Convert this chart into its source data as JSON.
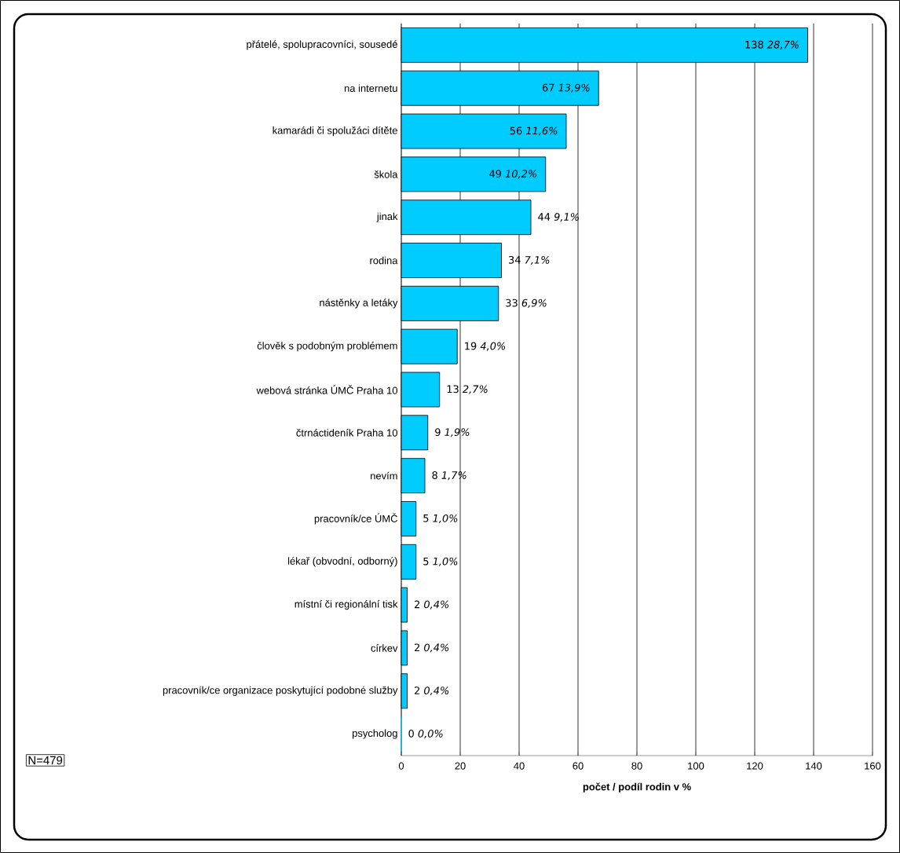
{
  "chart_data": {
    "type": "bar",
    "orientation": "horizontal",
    "categories": [
      "přátelé, spolupracovníci, sousedé",
      "na internetu",
      "kamarádi či spolužáci dítěte",
      "škola",
      "jinak",
      "rodina",
      "nástěnky a letáky",
      "člověk s podobným problémem",
      "webová stránka ÚMČ Praha 10",
      "čtrnáctideník Praha 10",
      "nevím",
      "pracovník/ce ÚMČ",
      "lékař (obvodní, odborný)",
      "místní či regionální tisk",
      "církev",
      "pracovník/ce organizace poskytující podobné služby",
      "psycholog"
    ],
    "values": [
      138,
      67,
      56,
      49,
      44,
      34,
      33,
      19,
      13,
      9,
      8,
      5,
      5,
      2,
      2,
      2,
      0
    ],
    "value_labels": [
      "138 *28,7%*",
      "67 *13,9%*",
      "56 *11,6%*",
      "49 *10,2%*",
      "44 *9,1%*",
      "34 *7,1%*",
      "33 *6,9%*",
      "19 *4,0%*",
      "13 *2,7%*",
      "9 *1,9%*",
      "8 *1,7%*",
      "5 *1,0%*",
      "5 *1,0%*",
      "2 *0,4%*",
      "2 *0,4%*",
      "2 *0,4%*",
      "0 *0,0%*"
    ],
    "color": "#00ccff",
    "xlim": [
      0,
      160
    ],
    "xticks": [
      0,
      20,
      40,
      60,
      80,
      100,
      120,
      140,
      160
    ],
    "grid": "x",
    "xlabel": "**počet / podíl rodin v %**",
    "annotations": [
      "N=479"
    ]
  }
}
